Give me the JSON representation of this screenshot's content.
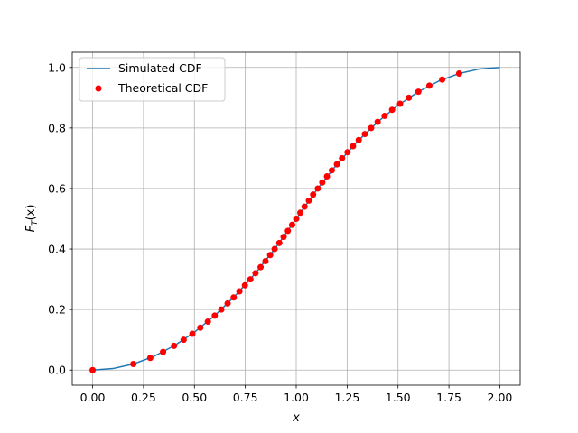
{
  "chart_data": {
    "type": "line",
    "xlabel": "x",
    "ylabel_main": "F",
    "ylabel_sub": "T",
    "ylabel_rest": "(x)",
    "xlim": [
      -0.1,
      2.1
    ],
    "ylim": [
      -0.05,
      1.05
    ],
    "xticks": [
      0.0,
      0.25,
      0.5,
      0.75,
      1.0,
      1.25,
      1.5,
      1.75,
      2.0
    ],
    "xtick_labels": [
      "0.00",
      "0.25",
      "0.50",
      "0.75",
      "1.00",
      "1.25",
      "1.50",
      "1.75",
      "2.00"
    ],
    "yticks": [
      0.0,
      0.2,
      0.4,
      0.6,
      0.8,
      1.0
    ],
    "ytick_labels": [
      "0.0",
      "0.2",
      "0.4",
      "0.6",
      "0.8",
      "1.0"
    ],
    "grid": true,
    "legend_position": "top-left",
    "line_color": "#1f77b4",
    "point_color": "#ff0000",
    "series": [
      {
        "name": "Simulated CDF",
        "kind": "line",
        "x": [
          0.0,
          0.1,
          0.2,
          0.3,
          0.4,
          0.5,
          0.6,
          0.7,
          0.8,
          0.9,
          1.0,
          1.1,
          1.2,
          1.3,
          1.4,
          1.5,
          1.6,
          1.7,
          1.8,
          1.9,
          2.0
        ],
        "y": [
          0.0,
          0.005,
          0.02,
          0.045,
          0.08,
          0.125,
          0.18,
          0.245,
          0.32,
          0.405,
          0.5,
          0.595,
          0.68,
          0.755,
          0.82,
          0.875,
          0.92,
          0.955,
          0.98,
          0.995,
          1.0
        ]
      },
      {
        "name": "Theoretical CDF",
        "kind": "scatter",
        "x": [
          0.0,
          0.2,
          0.283,
          0.346,
          0.4,
          0.447,
          0.49,
          0.529,
          0.566,
          0.6,
          0.632,
          0.663,
          0.693,
          0.721,
          0.748,
          0.775,
          0.8,
          0.825,
          0.849,
          0.872,
          0.894,
          0.917,
          0.938,
          0.959,
          0.98,
          1.0,
          1.02,
          1.041,
          1.062,
          1.083,
          1.106,
          1.128,
          1.151,
          1.175,
          1.2,
          1.225,
          1.252,
          1.279,
          1.307,
          1.337,
          1.368,
          1.4,
          1.434,
          1.471,
          1.51,
          1.553,
          1.6,
          1.654,
          1.717,
          1.8
        ],
        "y": [
          0.0,
          0.02,
          0.04,
          0.06,
          0.08,
          0.1,
          0.12,
          0.14,
          0.16,
          0.18,
          0.2,
          0.22,
          0.24,
          0.26,
          0.28,
          0.3,
          0.32,
          0.34,
          0.36,
          0.38,
          0.4,
          0.42,
          0.44,
          0.46,
          0.48,
          0.5,
          0.52,
          0.54,
          0.56,
          0.58,
          0.6,
          0.62,
          0.64,
          0.66,
          0.68,
          0.7,
          0.72,
          0.74,
          0.76,
          0.78,
          0.8,
          0.82,
          0.84,
          0.86,
          0.88,
          0.9,
          0.92,
          0.94,
          0.96,
          0.98
        ]
      }
    ]
  }
}
